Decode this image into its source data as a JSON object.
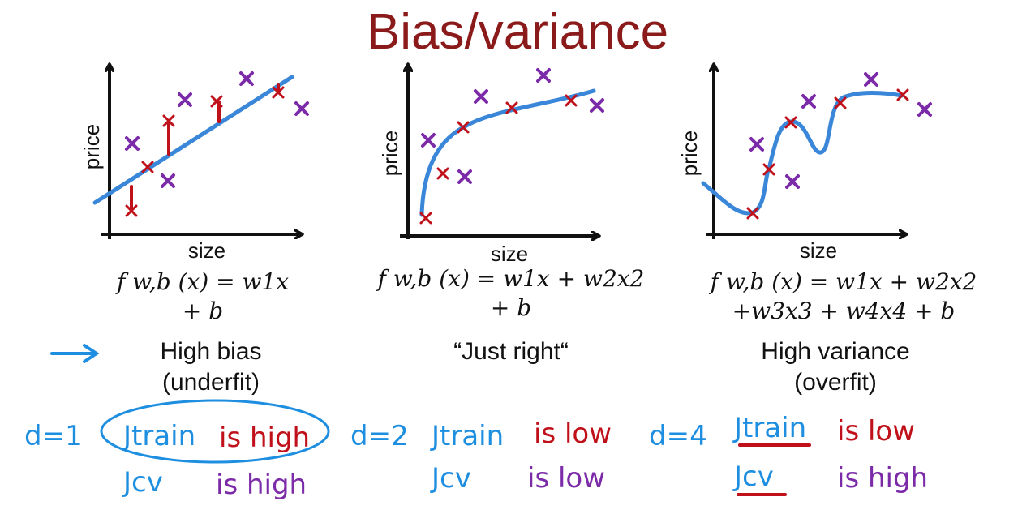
{
  "slide": {
    "title": "Bias/variance"
  },
  "panels": [
    {
      "ylabel": "price",
      "xlabel": "size",
      "formula_line1": "f w,b (x) = w1x",
      "formula_line2": "+ b",
      "formula_line1_parts": [
        "f",
        "w,b",
        "(x) = w",
        "1",
        "x"
      ],
      "verdict_line1": "High bias",
      "verdict_line2": "(underfit)",
      "degree": "d=1",
      "jtrain": "Jtrain",
      "jtrain_status": "is high",
      "jcv": "Jcv",
      "jcv_status": "is high"
    },
    {
      "ylabel": "price",
      "xlabel": "size",
      "formula_line1": "f w,b (x) = w1x + w2x2",
      "formula_line2": "+ b",
      "verdict_line1": "“Just right“",
      "verdict_line2": "",
      "degree": "d=2",
      "jtrain": "Jtrain",
      "jtrain_status": "is low",
      "jcv": "Jcv",
      "jcv_status": "is low"
    },
    {
      "ylabel": "price",
      "xlabel": "size",
      "formula_line1": "f w,b (x) = w1x + w2x2",
      "formula_line2": "+w3x3 + w4x4 + b",
      "verdict_line1": "High variance",
      "verdict_line2": "(overfit)",
      "degree": "d=4",
      "jtrain": "Jtrain",
      "jtrain_status": "is low",
      "jcv": "Jcv",
      "jcv_status": "is high"
    }
  ],
  "colors": {
    "title": "#8b1a1a",
    "fit_curve": "#3a86d8",
    "train_marker": "#c0101a",
    "cv_marker": "#7b2aa8",
    "handwriting_blue": "#1e8fe0",
    "axes": "#111111"
  },
  "icons": {
    "pointer": "right-arrow-icon"
  }
}
